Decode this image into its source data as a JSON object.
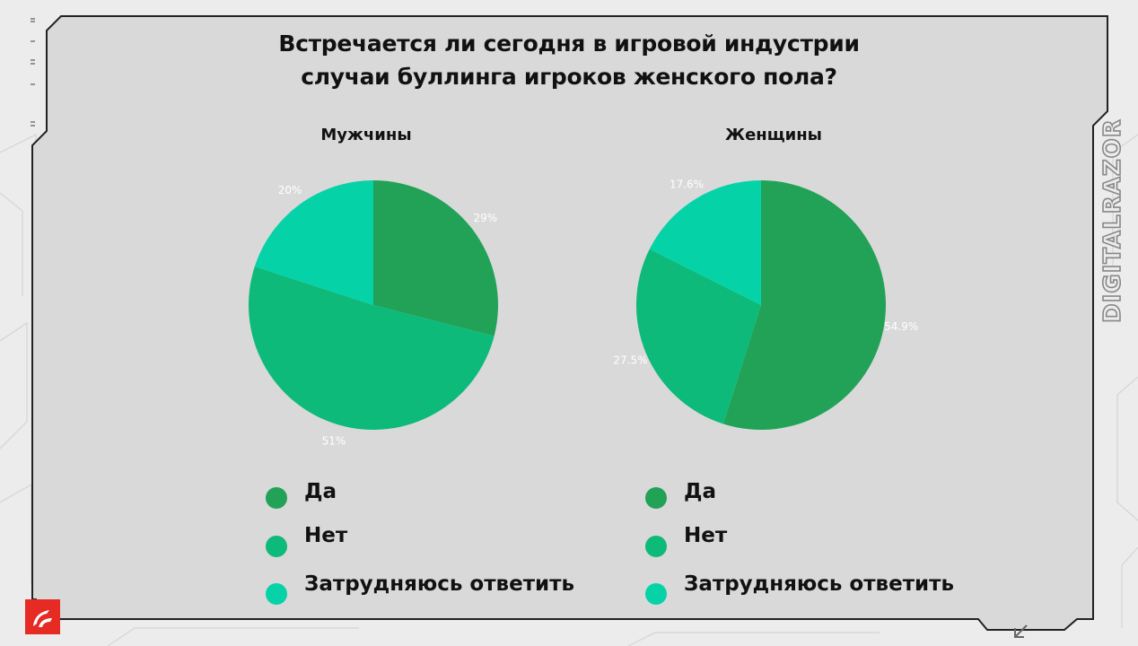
{
  "title_lines": [
    "Встречается ли сегодня в игровой индустрии",
    "случаи буллинга игроков женского пола?"
  ],
  "brand": "DIGITALRAZOR",
  "colors": {
    "yes": "#21a257",
    "no": "#0dba7a",
    "hard_to_say": "#06d2a8"
  },
  "icons": {
    "logo": "digitalrazor-logo-icon",
    "corner": "arrow-down-left-icon"
  },
  "chart_data": [
    {
      "type": "pie",
      "title": "Мужчины",
      "labels": [
        "Да",
        "Нет",
        "Затрудняюсь ответить"
      ],
      "values": [
        29,
        51,
        20
      ],
      "value_labels": [
        "29%",
        "51%",
        "20%"
      ]
    },
    {
      "type": "pie",
      "title": "Женщины",
      "labels": [
        "Да",
        "Нет",
        "Затрудняюсь ответить"
      ],
      "values": [
        54.9,
        27.5,
        17.6
      ],
      "value_labels": [
        "54.9%",
        "27.5%",
        "17.6%"
      ]
    }
  ],
  "legends": [
    {
      "items": [
        "Да",
        "Нет",
        "Затрудняюсь ответить"
      ]
    },
    {
      "items": [
        "Да",
        "Нет",
        "Затрудняюсь ответить"
      ]
    }
  ]
}
